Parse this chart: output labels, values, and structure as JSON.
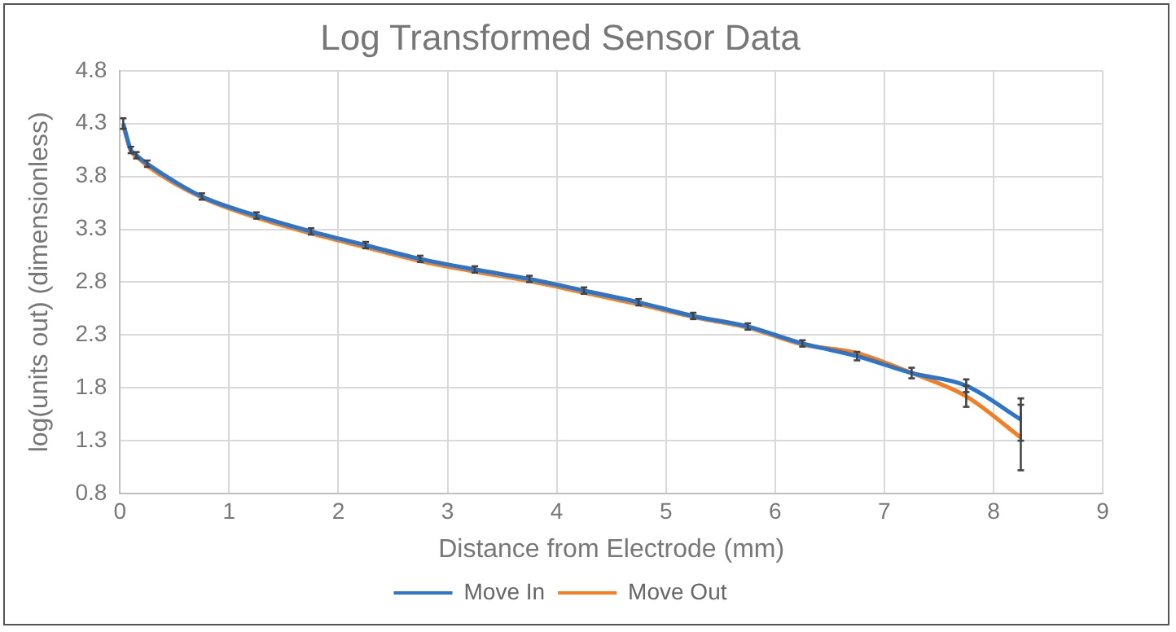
{
  "chart_data": {
    "type": "line",
    "title": "Log Transformed Sensor Data",
    "xlabel": "Distance from Electrode (mm)",
    "ylabel": "log(units out) (dimensionless)",
    "x": [
      0.03,
      0.1,
      0.15,
      0.25,
      0.75,
      1.25,
      1.75,
      2.25,
      2.75,
      3.25,
      3.75,
      4.25,
      4.75,
      5.25,
      5.75,
      6.25,
      6.75,
      7.25,
      7.75,
      8.25
    ],
    "series": [
      {
        "name": "Move In",
        "color": "#2e75c8",
        "values": [
          4.3,
          4.05,
          4.0,
          3.92,
          3.61,
          3.43,
          3.28,
          3.15,
          3.02,
          2.92,
          2.83,
          2.72,
          2.61,
          2.48,
          2.38,
          2.22,
          2.1,
          1.94,
          1.82,
          1.5
        ],
        "errors": [
          0.05,
          0.03,
          0.03,
          0.03,
          0.03,
          0.03,
          0.03,
          0.03,
          0.03,
          0.03,
          0.03,
          0.03,
          0.03,
          0.03,
          0.03,
          0.03,
          0.04,
          0.05,
          0.06,
          0.2
        ]
      },
      {
        "name": "Move Out",
        "color": "#f07f26",
        "values": [
          4.28,
          4.04,
          3.99,
          3.9,
          3.6,
          3.41,
          3.26,
          3.13,
          3.0,
          2.9,
          2.81,
          2.7,
          2.59,
          2.47,
          2.37,
          2.21,
          2.13,
          1.94,
          1.72,
          1.33
        ],
        "errors": [
          null,
          null,
          null,
          null,
          null,
          null,
          null,
          null,
          null,
          null,
          null,
          null,
          null,
          null,
          null,
          null,
          null,
          null,
          0.1,
          0.31
        ]
      }
    ],
    "xlim": [
      0,
      9
    ],
    "xticks": [
      0,
      1,
      2,
      3,
      4,
      5,
      6,
      7,
      8,
      9
    ],
    "ylim": [
      0.8,
      4.8
    ],
    "yticks": [
      0.8,
      1.3,
      1.8,
      2.3,
      2.8,
      3.3,
      3.8,
      4.3,
      4.8
    ],
    "grid": true,
    "legend": "bottom",
    "line_style": "solid"
  }
}
